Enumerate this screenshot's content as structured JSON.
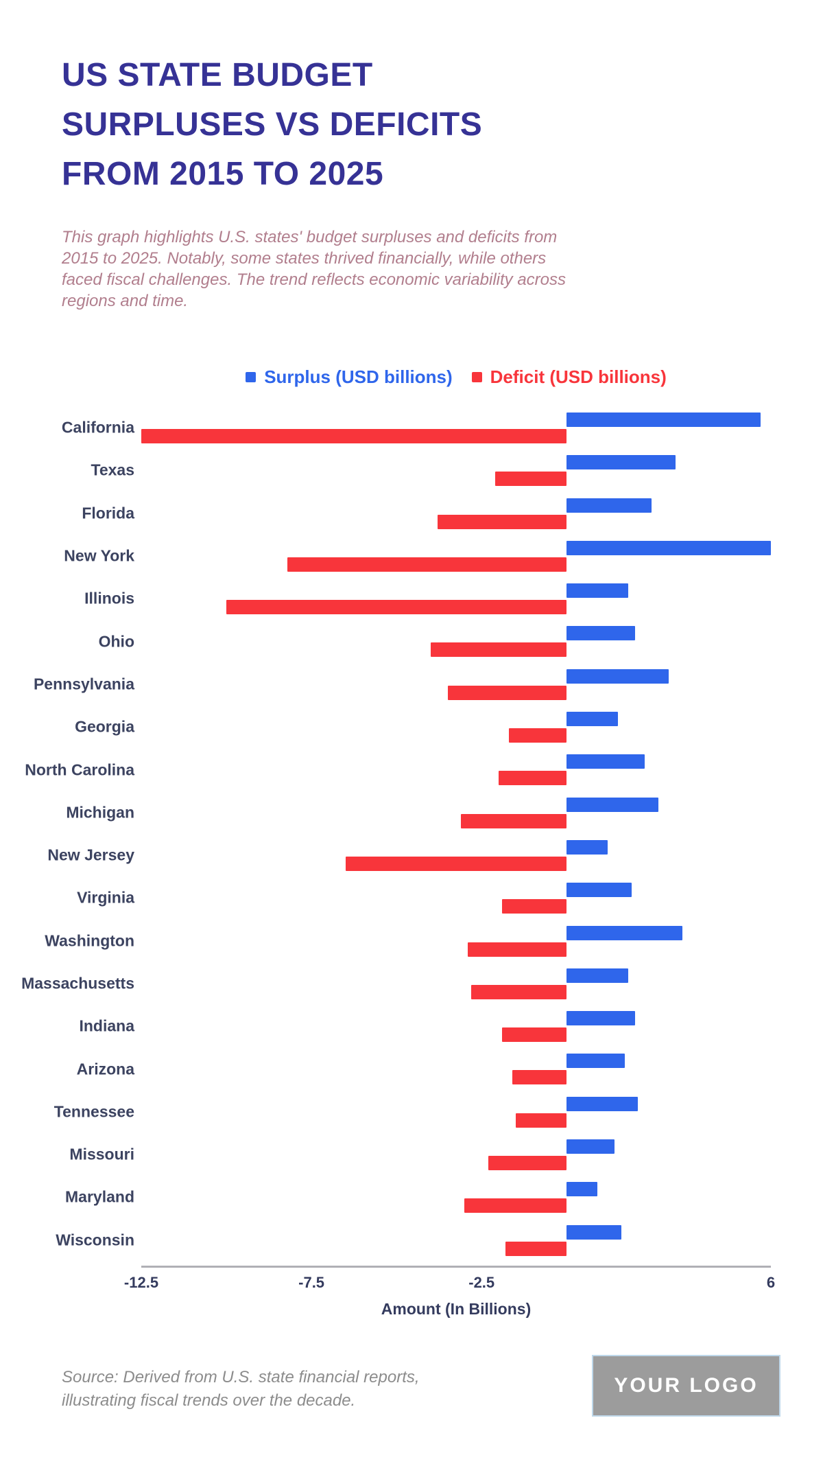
{
  "header": {
    "title_lines": [
      "US STATE BUDGET",
      "SURPLUSES VS DEFICITS",
      "FROM 2015 TO 2025"
    ],
    "subtitle": "This graph highlights U.S. states' budget surpluses and deficits from 2015 to 2025. Notably, some states thrived financially, while others faced fiscal challenges. The trend reflects economic variability across regions and time."
  },
  "chart_data": {
    "type": "bar",
    "orientation": "horizontal",
    "title": "US State Budget Surpluses vs Deficits from 2015 to 2025",
    "categories": [
      "California",
      "Texas",
      "Florida",
      "New York",
      "Illinois",
      "Ohio",
      "Pennsylvania",
      "Georgia",
      "North Carolina",
      "Michigan",
      "New Jersey",
      "Virginia",
      "Washington",
      "Massachusetts",
      "Indiana",
      "Arizona",
      "Tennessee",
      "Missouri",
      "Maryland",
      "Wisconsin"
    ],
    "series": [
      {
        "name": "Surplus (USD billions)",
        "color": "#2F66EB",
        "values": [
          5.7,
          3.2,
          2.5,
          6.0,
          1.8,
          2.0,
          3.0,
          1.5,
          2.3,
          2.7,
          1.2,
          1.9,
          3.4,
          1.8,
          2.0,
          1.7,
          2.1,
          1.4,
          0.9,
          1.6
        ]
      },
      {
        "name": "Deficit (USD billions)",
        "color": "#F8353B",
        "values": [
          -12.5,
          -2.1,
          -3.8,
          -8.2,
          -10.0,
          -4.0,
          -3.5,
          -1.7,
          -2.0,
          -3.1,
          -6.5,
          -1.9,
          -2.9,
          -2.8,
          -1.9,
          -1.6,
          -1.5,
          -2.3,
          -3.0,
          -1.8
        ]
      }
    ],
    "xlabel": "Amount (In Billions)",
    "xlim": [
      -12.5,
      6
    ],
    "ticks": [
      -12.5,
      -7.5,
      -2.5,
      6
    ],
    "grid": false,
    "legend_position": "top"
  },
  "footer": {
    "source": "Source: Derived from U.S. state financial reports, illustrating fiscal trends over the decade.",
    "logo_text": "YOUR LOGO"
  }
}
